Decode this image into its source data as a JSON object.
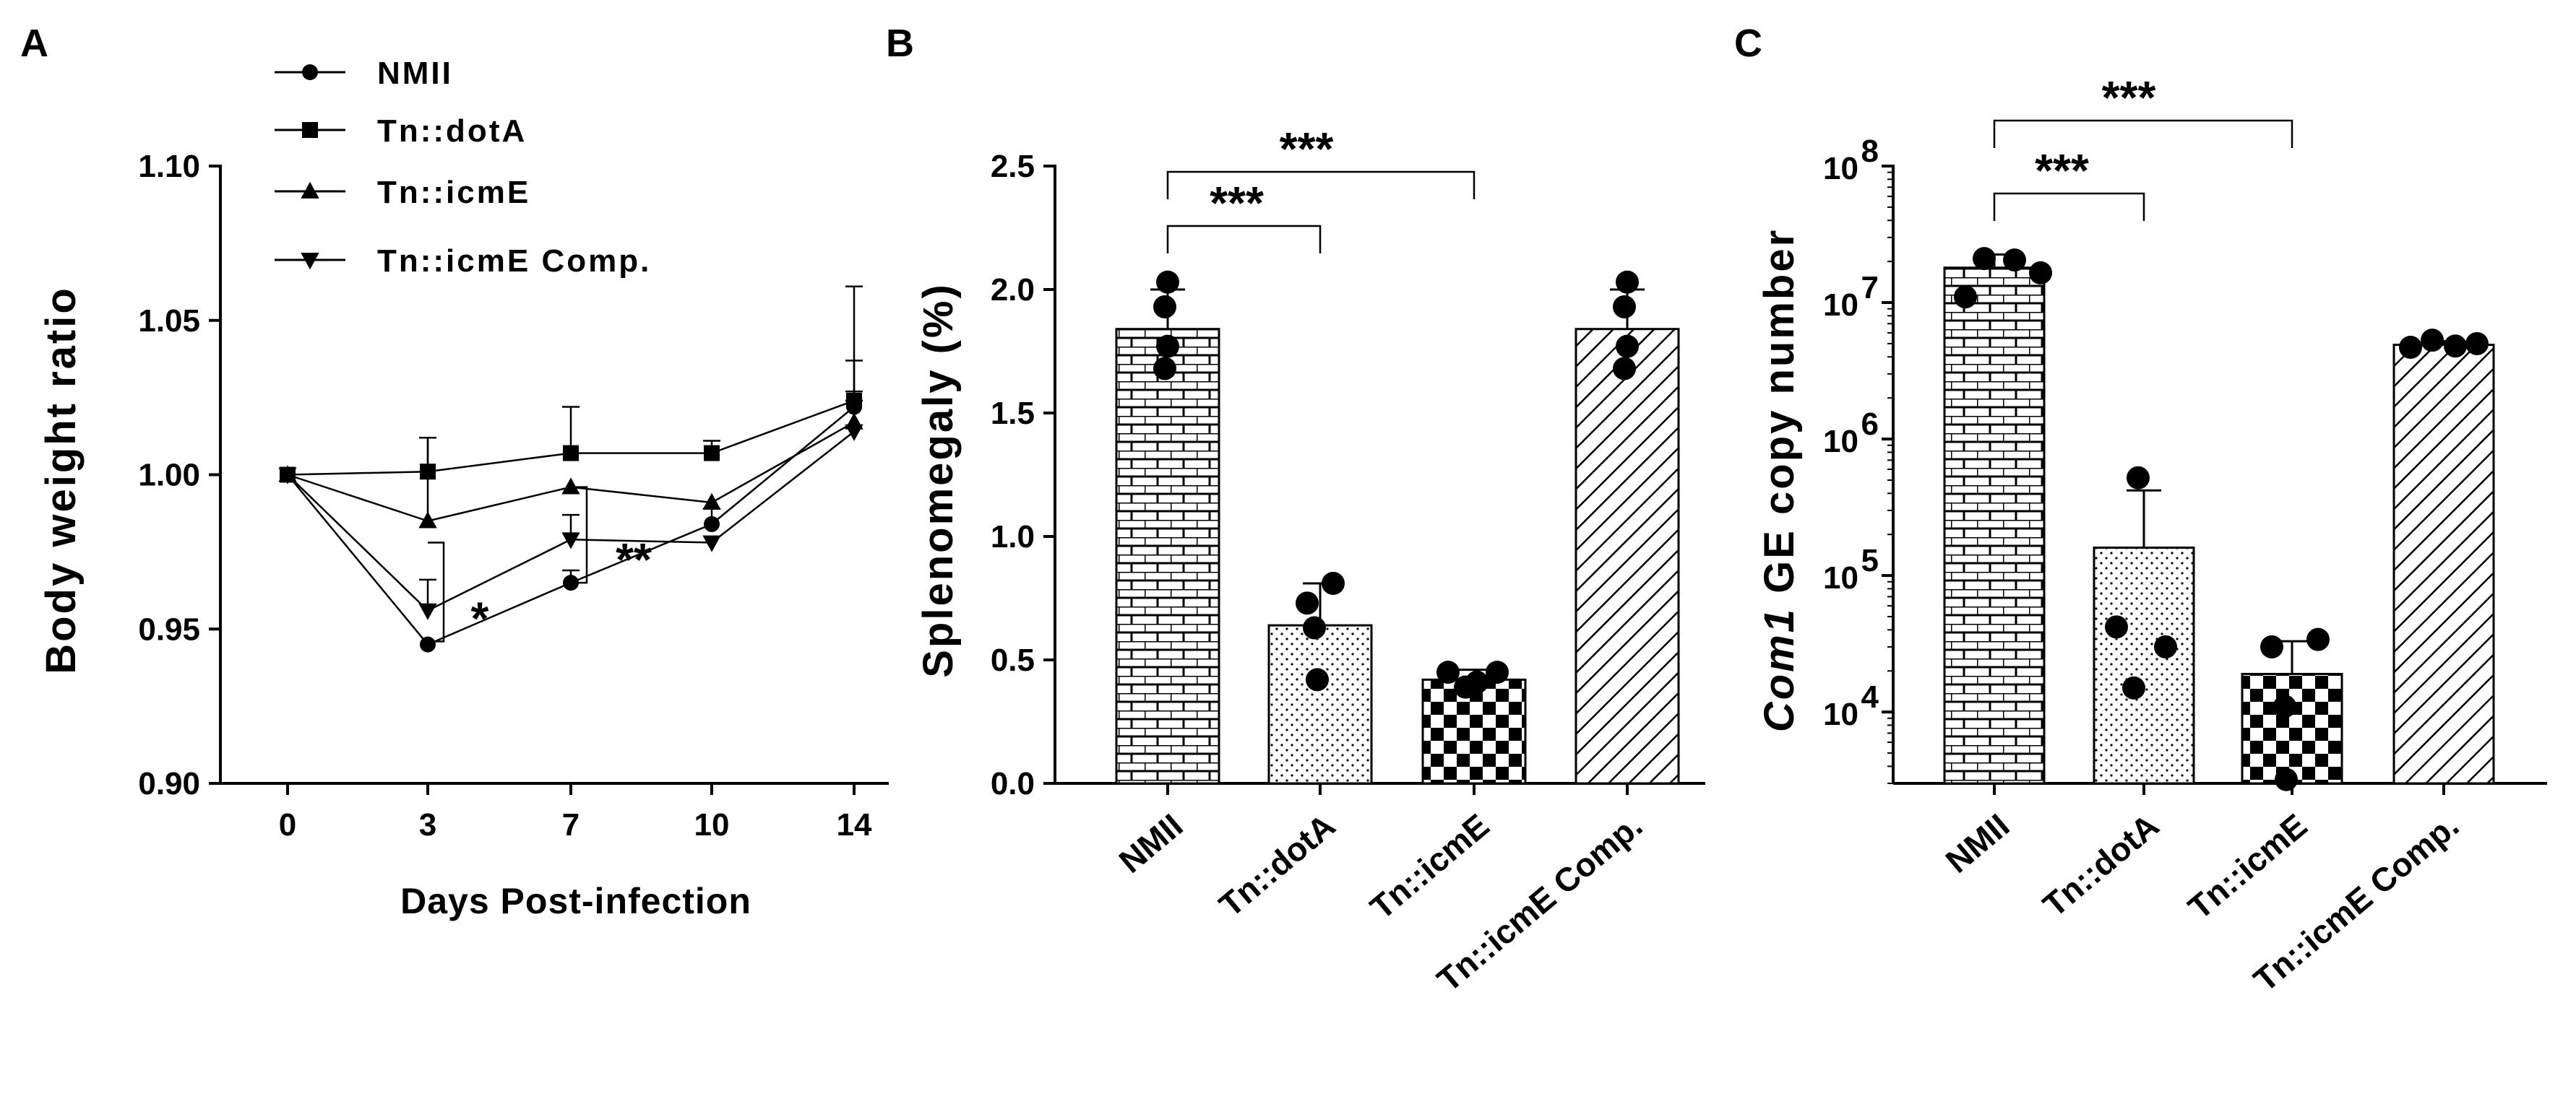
{
  "panels": [
    {
      "letter": "A"
    },
    {
      "letter": "B"
    },
    {
      "letter": "C"
    }
  ],
  "colors": {
    "ink": "#000000",
    "paper": "#ffffff"
  },
  "chart_data": [
    {
      "type": "line",
      "xlabel": "Days Post-infection",
      "ylabel": "Body weight ratio",
      "x": [
        0,
        3,
        7,
        10,
        14
      ],
      "xticks": [
        "0",
        "3",
        "7",
        "10",
        "14"
      ],
      "ylim": [
        0.9,
        1.1
      ],
      "yticks": [
        "0.90",
        "0.95",
        "1.00",
        "1.05",
        "1.10"
      ],
      "legend_position": "top-left",
      "series": [
        {
          "name": "NMII",
          "marker": "circle",
          "values": [
            1.0,
            0.945,
            0.965,
            0.984,
            1.022
          ],
          "errors": [
            0,
            0,
            0.004,
            0.005,
            0.015
          ]
        },
        {
          "name": "Tn::dotA",
          "marker": "square",
          "values": [
            1.0,
            1.001,
            1.007,
            1.007,
            1.024
          ],
          "errors": [
            0,
            0.011,
            0.015,
            0.004,
            0.037
          ]
        },
        {
          "name": "Tn::icmE",
          "marker": "triangle-up",
          "values": [
            1.0,
            0.985,
            0.996,
            0.991,
            1.017
          ],
          "errors": [
            0,
            0.027,
            0,
            0,
            0.01
          ]
        },
        {
          "name": "Tn::icmE Comp.",
          "marker": "triangle-down",
          "values": [
            1.0,
            0.956,
            0.979,
            0.978,
            1.014
          ],
          "errors": [
            0,
            0.01,
            0.008,
            0,
            0.01
          ]
        }
      ],
      "annotations": [
        {
          "text": "*",
          "between_x": [
            3,
            3
          ]
        },
        {
          "text": "**",
          "between_x": [
            7,
            7
          ]
        }
      ]
    },
    {
      "type": "bar",
      "ylabel": "Splenomegaly (%)",
      "categories": [
        "NMII",
        "Tn::dotA",
        "Tn::icmE",
        "Tn::icmE Comp."
      ],
      "values": [
        1.84,
        0.64,
        0.42,
        1.84
      ],
      "errors": [
        0.16,
        0.17,
        0.04,
        0.16
      ],
      "points": [
        [
          2.03,
          1.93,
          1.77,
          1.68
        ],
        [
          0.81,
          0.73,
          0.63,
          0.42
        ],
        [
          0.45,
          0.41,
          0.39,
          0.45
        ],
        [
          2.03,
          1.93,
          1.77,
          1.68
        ]
      ],
      "patterns": [
        "brick",
        "dots",
        "checker",
        "diagonal"
      ],
      "ylim": [
        0,
        2.5
      ],
      "yticks": [
        "0.0",
        "0.5",
        "1.0",
        "1.5",
        "2.0",
        "2.5"
      ],
      "significance": [
        {
          "from": 0,
          "to": 1,
          "label": "***"
        },
        {
          "from": 0,
          "to": 2,
          "label": "***"
        }
      ]
    },
    {
      "type": "bar",
      "ylabel_italic": "Com1",
      "ylabel": " GE copy number",
      "categories": [
        "NMII",
        "Tn::dotA",
        "Tn::icmE",
        "Tn::icmE Comp."
      ],
      "scale": "log",
      "values": [
        18000000,
        160000,
        19000,
        4900000
      ],
      "errors_upper": [
        22500000,
        420000,
        33000,
        5200000
      ],
      "points": [
        [
          21000000,
          11000000,
          20500000,
          16500000
        ],
        [
          520000,
          42000,
          15000,
          30000
        ],
        [
          30000,
          11000,
          3200,
          34000
        ],
        [
          4700000,
          5300000,
          4800000,
          5000000
        ]
      ],
      "patterns": [
        "brick",
        "dots",
        "checker",
        "diagonal"
      ],
      "ylim": [
        3000,
        100000000
      ],
      "yticks": [
        {
          "base": "10",
          "exp": "4"
        },
        {
          "base": "10",
          "exp": "5"
        },
        {
          "base": "10",
          "exp": "6"
        },
        {
          "base": "10",
          "exp": "7"
        },
        {
          "base": "10",
          "exp": "8"
        }
      ],
      "significance": [
        {
          "from": 0,
          "to": 1,
          "label": "***"
        },
        {
          "from": 0,
          "to": 2,
          "label": "***"
        }
      ]
    }
  ]
}
